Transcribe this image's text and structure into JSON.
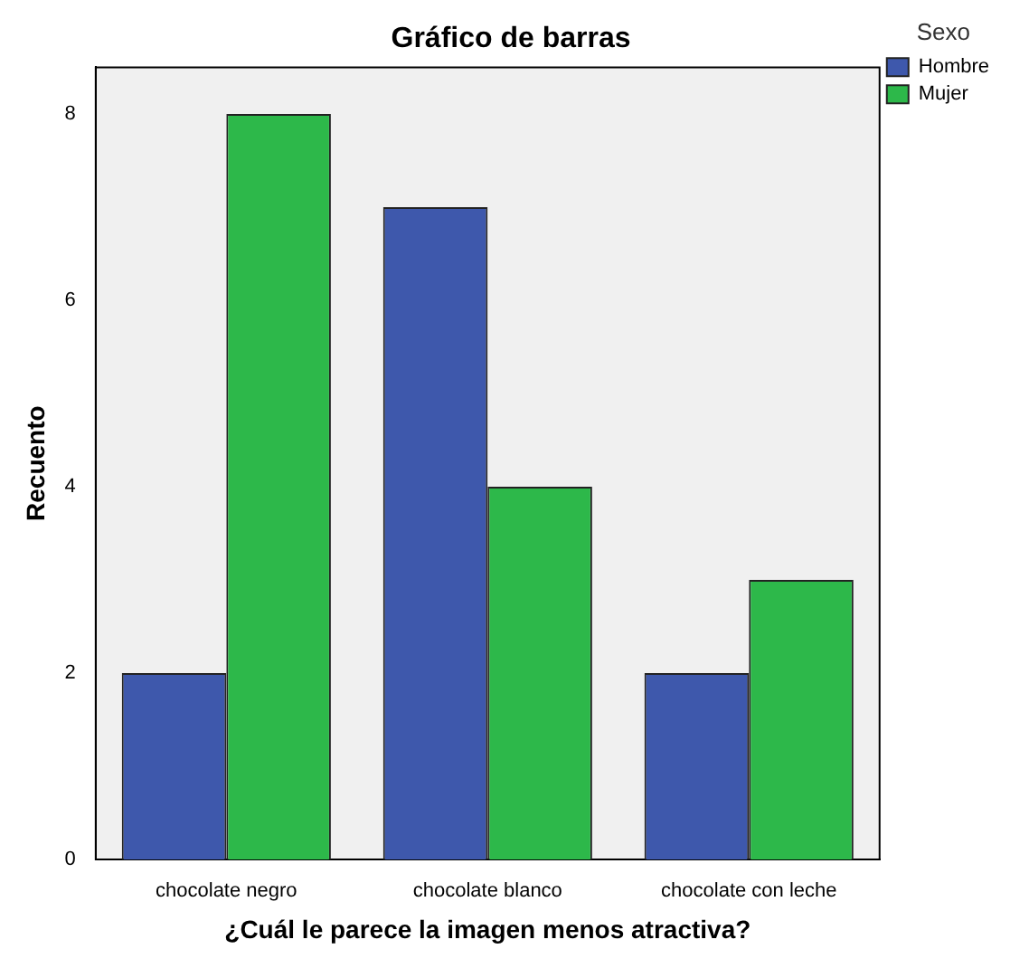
{
  "chart_data": {
    "type": "bar",
    "title": "Gráfico de barras",
    "xlabel": "¿Cuál le parece la imagen menos atractiva?",
    "ylabel": "Recuento",
    "legend_title": "Sexo",
    "categories": [
      "chocolate negro",
      "chocolate blanco",
      "chocolate con leche"
    ],
    "series": [
      {
        "name": "Hombre",
        "color": "#3e58ac",
        "values": [
          2,
          7,
          2
        ]
      },
      {
        "name": "Mujer",
        "color": "#2db84a",
        "values": [
          8,
          4,
          3
        ]
      }
    ],
    "ylim": [
      0,
      8.5
    ],
    "yticks": [
      0,
      2,
      4,
      6,
      8
    ],
    "grid": false,
    "legend": "top right"
  }
}
